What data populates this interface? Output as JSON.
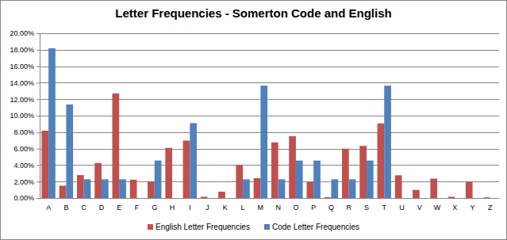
{
  "chart_data": {
    "type": "bar",
    "title": "Letter Frequencies - Somerton Code and English",
    "categories": [
      "A",
      "B",
      "C",
      "D",
      "E",
      "F",
      "G",
      "H",
      "I",
      "J",
      "K",
      "L",
      "M",
      "N",
      "O",
      "P",
      "Q",
      "R",
      "S",
      "T",
      "U",
      "V",
      "W",
      "X",
      "Y",
      "Z"
    ],
    "series": [
      {
        "name": "English Letter Frequencies",
        "color": "#c0504d",
        "values": [
          8.17,
          1.49,
          2.78,
          4.25,
          12.7,
          2.23,
          2.02,
          6.09,
          6.97,
          0.15,
          0.77,
          4.03,
          2.41,
          6.75,
          7.51,
          1.93,
          0.1,
          5.99,
          6.33,
          9.06,
          2.76,
          0.98,
          2.36,
          0.15,
          1.97,
          0.07
        ]
      },
      {
        "name": "Code Letter Frequencies",
        "color": "#4f81bd",
        "values": [
          18.18,
          11.36,
          2.27,
          2.27,
          2.27,
          0,
          4.55,
          0,
          9.09,
          0,
          0,
          2.27,
          13.64,
          2.27,
          4.55,
          4.55,
          2.27,
          2.27,
          4.55,
          13.64,
          0,
          0,
          0,
          0,
          0,
          0
        ]
      }
    ],
    "ylim": [
      0,
      20
    ],
    "yticks": [
      {
        "value": 0,
        "label": "0.00%"
      },
      {
        "value": 2,
        "label": "2.00%"
      },
      {
        "value": 4,
        "label": "4.00%"
      },
      {
        "value": 6,
        "label": "6.00%"
      },
      {
        "value": 8,
        "label": "8.00%"
      },
      {
        "value": 10,
        "label": "10.00%"
      },
      {
        "value": 12,
        "label": "12.00%"
      },
      {
        "value": 14,
        "label": "14.00%"
      },
      {
        "value": 16,
        "label": "16.00%"
      },
      {
        "value": 18,
        "label": "18.00%"
      },
      {
        "value": 20,
        "label": "20.00%"
      }
    ],
    "grid": true,
    "legend": "bottom"
  }
}
